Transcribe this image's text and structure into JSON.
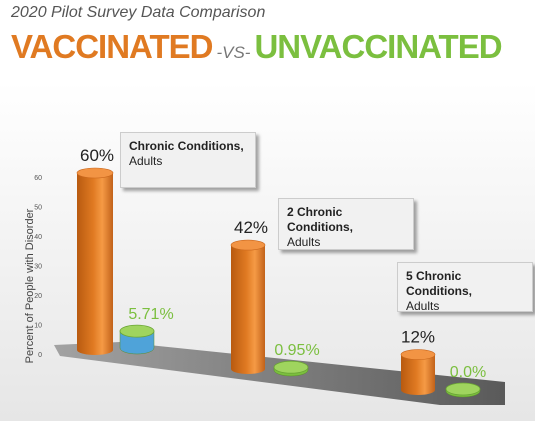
{
  "header": {
    "subtitle": "2020 Pilot Survey Data Comparison",
    "left_word": "VACCINATED",
    "vs": "-VS-",
    "right_word": "UNVACCINATED"
  },
  "colors": {
    "vaccinated": "#e07a22",
    "unvaccinated": "#7bbf3f",
    "unvaccinated_blue": "#4fa3d9",
    "background_top": "#ffffff",
    "background_bottom": "#e6e6e6"
  },
  "callouts": [
    {
      "line1": "Chronic Conditions,",
      "line2": "Adults"
    },
    {
      "line1": "2 Chronic Conditions,",
      "line2": "Adults"
    },
    {
      "line1": "5 Chronic Conditions,",
      "line2": "Adults"
    }
  ],
  "chart_data": {
    "type": "bar",
    "title": "",
    "xlabel": "",
    "ylabel": "Percent of People with Disorder",
    "ylim": [
      0,
      60
    ],
    "yticks": [
      0,
      10,
      20,
      30,
      40,
      50,
      60
    ],
    "categories": [
      "Chronic Conditions, Adults",
      "2 Chronic Conditions, Adults",
      "5 Chronic Conditions, Adults"
    ],
    "series": [
      {
        "name": "VACCINATED",
        "values": [
          60,
          42,
          12
        ],
        "labels": [
          "60%",
          "42%",
          "12%"
        ]
      },
      {
        "name": "UNVACCINATED",
        "values": [
          5.71,
          0.95,
          0.0
        ],
        "labels": [
          "5.71%",
          "0.95%",
          "0.0%"
        ]
      }
    ]
  }
}
